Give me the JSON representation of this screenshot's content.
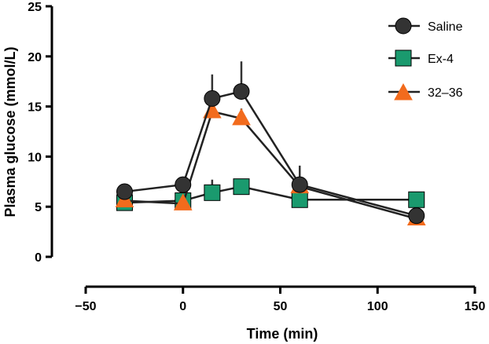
{
  "chart_data": {
    "type": "line",
    "title": "",
    "xlabel": "Time (min)",
    "ylabel": "Plasma glucose (mmol/L)",
    "xlim": [
      -50,
      150
    ],
    "ylim": [
      0,
      25
    ],
    "x_ticks": [
      -50,
      0,
      50,
      100,
      150
    ],
    "x_tick_labels": [
      "−50",
      "0",
      "50",
      "100",
      "150"
    ],
    "y_ticks": [
      0,
      5,
      10,
      15,
      20,
      25
    ],
    "y_tick_labels": [
      "0",
      "5",
      "10",
      "15",
      "20",
      "25"
    ],
    "grid": false,
    "legend_position": "top-right",
    "series": [
      {
        "name": "Saline",
        "marker": "circle",
        "color": "#333333",
        "x": [
          -30,
          0,
          15,
          30,
          60,
          120
        ],
        "y": [
          6.5,
          7.2,
          15.8,
          16.5,
          7.2,
          4.1
        ],
        "error": [
          0.8,
          0.4,
          2.4,
          3.0,
          1.9,
          0.3
        ]
      },
      {
        "name": "Ex-4",
        "marker": "square",
        "color": "#1a9a6e",
        "x": [
          -30,
          0,
          15,
          30,
          60,
          120
        ],
        "y": [
          5.4,
          5.6,
          6.4,
          7.0,
          5.7,
          5.7
        ],
        "error": [
          0.3,
          0.4,
          1.3,
          0.4,
          0.3,
          0.3
        ]
      },
      {
        "name": "32–36",
        "marker": "triangle",
        "color": "#f26b1d",
        "x": [
          -30,
          0,
          15,
          30,
          60,
          120
        ],
        "y": [
          5.6,
          5.3,
          14.5,
          13.8,
          7.0,
          3.8
        ],
        "error": [
          0.3,
          0.3,
          0.5,
          1.0,
          0.4,
          0.3
        ]
      }
    ]
  }
}
